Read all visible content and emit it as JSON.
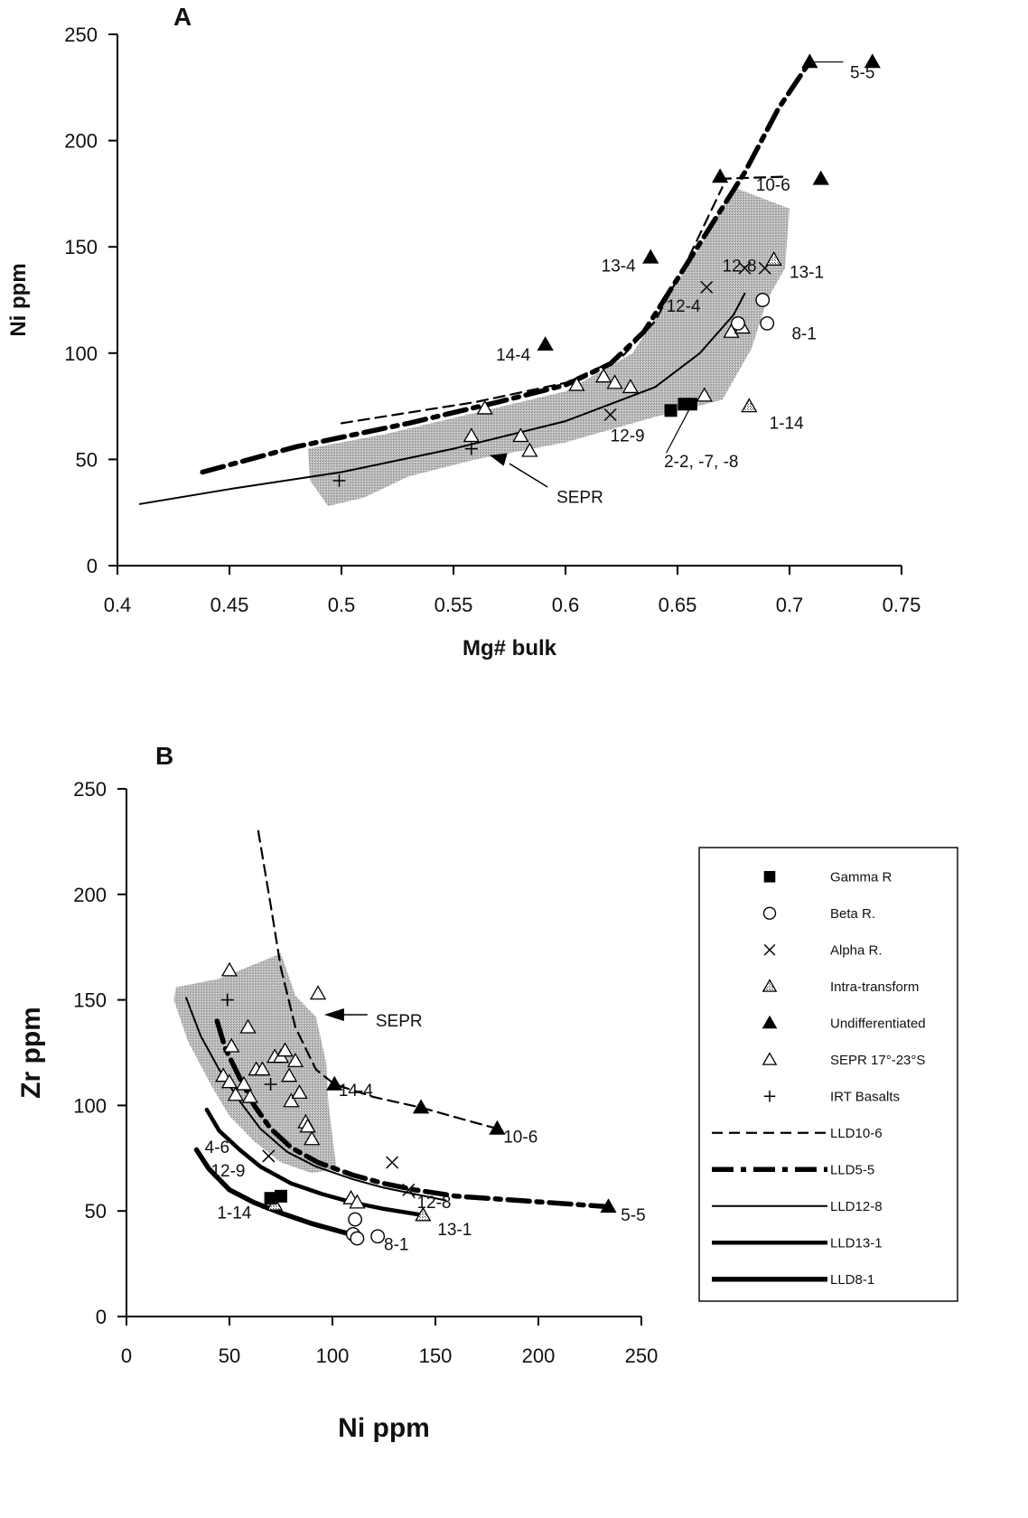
{
  "chart_data": [
    {
      "panel": "A",
      "type": "scatter",
      "xlabel": "Mg# bulk",
      "ylabel": "Ni ppm",
      "xlim": [
        0.4,
        0.75
      ],
      "ylim": [
        0,
        250
      ],
      "xticks": [
        "0.4",
        "0.45",
        "0.5",
        "0.55",
        "0.6",
        "0.65",
        "0.7",
        "0.75"
      ],
      "yticks": [
        "0",
        "50",
        "100",
        "150",
        "200",
        "250"
      ],
      "field_label": "SEPR",
      "field": [
        [
          0.485,
          55
        ],
        [
          0.52,
          62
        ],
        [
          0.56,
          72
        ],
        [
          0.6,
          82
        ],
        [
          0.63,
          100
        ],
        [
          0.645,
          125
        ],
        [
          0.66,
          150
        ],
        [
          0.675,
          178
        ],
        [
          0.7,
          168
        ],
        [
          0.698,
          140
        ],
        [
          0.69,
          125
        ],
        [
          0.683,
          102
        ],
        [
          0.67,
          78
        ],
        [
          0.64,
          70
        ],
        [
          0.6,
          58
        ],
        [
          0.56,
          50
        ],
        [
          0.53,
          42
        ],
        [
          0.51,
          32
        ],
        [
          0.494,
          28
        ],
        [
          0.486,
          40
        ]
      ],
      "points": {
        "gamma": [
          [
            0.647,
            73
          ],
          [
            0.653,
            76
          ],
          [
            0.656,
            76
          ]
        ],
        "beta": [
          [
            0.677,
            114
          ],
          [
            0.688,
            125
          ],
          [
            0.69,
            114
          ]
        ],
        "alpha": [
          [
            0.62,
            71
          ],
          [
            0.663,
            131
          ],
          [
            0.68,
            140
          ],
          [
            0.689,
            140
          ]
        ],
        "intra": [
          [
            0.682,
            75
          ],
          [
            0.693,
            144
          ]
        ],
        "undiff": [
          [
            0.591,
            104
          ],
          [
            0.638,
            145
          ],
          [
            0.669,
            183
          ],
          [
            0.709,
            237
          ],
          [
            0.714,
            182
          ],
          [
            0.737,
            237
          ]
        ],
        "sepr": [
          [
            0.558,
            61
          ],
          [
            0.564,
            74
          ],
          [
            0.58,
            61
          ],
          [
            0.584,
            54
          ],
          [
            0.605,
            85
          ],
          [
            0.617,
            89
          ],
          [
            0.622,
            86
          ],
          [
            0.629,
            84
          ],
          [
            0.662,
            80
          ],
          [
            0.674,
            110
          ],
          [
            0.679,
            112
          ]
        ],
        "irt": [
          [
            0.499,
            40
          ],
          [
            0.558,
            55
          ]
        ]
      },
      "series": [
        {
          "name": "LLD10-6",
          "style": "dash",
          "points": [
            [
              0.669,
              182
            ],
            [
              0.697,
              183
            ]
          ]
        },
        {
          "name": "LLD5-5",
          "style": "dashheavy",
          "points": [
            [
              0.438,
              44
            ],
            [
              0.48,
              56
            ],
            [
              0.53,
              67
            ],
            [
              0.57,
              77
            ],
            [
              0.6,
              85
            ],
            [
              0.62,
              95
            ],
            [
              0.635,
              110
            ],
            [
              0.65,
              135
            ],
            [
              0.668,
              165
            ],
            [
              0.68,
              185
            ],
            [
              0.695,
              215
            ],
            [
              0.709,
              237
            ]
          ]
        },
        {
          "name": "LLD12-8",
          "style": "thin",
          "points": [
            [
              0.41,
              29
            ],
            [
              0.45,
              36
            ],
            [
              0.5,
              44
            ],
            [
              0.55,
              55
            ],
            [
              0.6,
              68
            ],
            [
              0.64,
              84
            ],
            [
              0.66,
              100
            ],
            [
              0.675,
              118
            ],
            [
              0.68,
              128
            ]
          ]
        },
        {
          "name": "upper",
          "style": "dash",
          "points": [
            [
              0.5,
              67
            ],
            [
              0.56,
              77
            ],
            [
              0.6,
              86
            ],
            [
              0.625,
              98
            ],
            [
              0.64,
              115
            ],
            [
              0.655,
              145
            ],
            [
              0.67,
              178
            ]
          ]
        }
      ],
      "labels": [
        {
          "t": "5-5",
          "x": 0.727,
          "y": 232
        },
        {
          "t": "10-6",
          "x": 0.685,
          "y": 179
        },
        {
          "t": "13-4",
          "x": 0.616,
          "y": 141
        },
        {
          "t": "12-8",
          "x": 0.67,
          "y": 141
        },
        {
          "t": "13-1",
          "x": 0.7,
          "y": 138
        },
        {
          "t": "12-4",
          "x": 0.645,
          "y": 122
        },
        {
          "t": "8-1",
          "x": 0.701,
          "y": 109
        },
        {
          "t": "14-4",
          "x": 0.569,
          "y": 99
        },
        {
          "t": "1-14",
          "x": 0.691,
          "y": 67
        },
        {
          "t": "12-9",
          "x": 0.62,
          "y": 61
        },
        {
          "t": "2-2, -7, -8",
          "x": 0.644,
          "y": 49
        },
        {
          "t": "SEPR",
          "x": 0.596,
          "y": 32
        }
      ]
    },
    {
      "panel": "B",
      "type": "scatter",
      "xlabel": "Ni ppm",
      "ylabel": "Zr ppm",
      "xlim": [
        0,
        250
      ],
      "ylim": [
        0,
        250
      ],
      "xticks": [
        "0",
        "50",
        "100",
        "150",
        "200",
        "250"
      ],
      "yticks": [
        "0",
        "50",
        "100",
        "150",
        "200",
        "250"
      ],
      "field_label": "SEPR",
      "field": [
        [
          24,
          156
        ],
        [
          45,
          160
        ],
        [
          75,
          172
        ],
        [
          82,
          152
        ],
        [
          92,
          142
        ],
        [
          97,
          120
        ],
        [
          98,
          102
        ],
        [
          100,
          85
        ],
        [
          102,
          70
        ],
        [
          90,
          68
        ],
        [
          75,
          73
        ],
        [
          62,
          83
        ],
        [
          50,
          95
        ],
        [
          42,
          108
        ],
        [
          30,
          130
        ],
        [
          23,
          150
        ]
      ],
      "points": {
        "gamma": [
          [
            70,
            56
          ],
          [
            75,
            57
          ]
        ],
        "beta": [
          [
            111,
            46
          ],
          [
            110,
            39
          ],
          [
            112,
            37
          ],
          [
            122,
            38
          ]
        ],
        "alpha": [
          [
            69,
            76
          ],
          [
            129,
            73
          ],
          [
            137,
            60
          ]
        ],
        "intra": [
          [
            72,
            53
          ],
          [
            144,
            48
          ]
        ],
        "undiff": [
          [
            101,
            110
          ],
          [
            143,
            99
          ],
          [
            180,
            89
          ],
          [
            234,
            52
          ]
        ],
        "sepr": [
          [
            50,
            164
          ],
          [
            51,
            128
          ],
          [
            47,
            114
          ],
          [
            50,
            111
          ],
          [
            53,
            105
          ],
          [
            57,
            110
          ],
          [
            60,
            104
          ],
          [
            59,
            137
          ],
          [
            63,
            117
          ],
          [
            66,
            117
          ],
          [
            72,
            123
          ],
          [
            75,
            123
          ],
          [
            77,
            126
          ],
          [
            79,
            114
          ],
          [
            80,
            102
          ],
          [
            82,
            121
          ],
          [
            84,
            106
          ],
          [
            87,
            92
          ],
          [
            88,
            90
          ],
          [
            90,
            84
          ],
          [
            93,
            153
          ],
          [
            109,
            56
          ],
          [
            112,
            54
          ]
        ],
        "irt": [
          [
            49,
            150
          ],
          [
            70,
            110
          ]
        ]
      },
      "series": [
        {
          "name": "LLD10-6",
          "style": "dash",
          "points": [
            [
              64,
              230
            ],
            [
              70,
              195
            ],
            [
              75,
              165
            ],
            [
              82,
              137
            ],
            [
              92,
              117
            ],
            [
              101,
              110
            ],
            [
              120,
              104
            ],
            [
              143,
              99
            ],
            [
              165,
              93
            ],
            [
              180,
              89
            ]
          ]
        },
        {
          "name": "LLD5-5",
          "style": "dashheavy",
          "points": [
            [
              44,
              140
            ],
            [
              48,
              127
            ],
            [
              55,
              113
            ],
            [
              62,
              100
            ],
            [
              70,
              89
            ],
            [
              80,
              80
            ],
            [
              93,
              73
            ],
            [
              110,
              67
            ],
            [
              125,
              63
            ],
            [
              140,
              60
            ],
            [
              160,
              57
            ],
            [
              190,
              55
            ],
            [
              234,
              52
            ]
          ]
        },
        {
          "name": "LLD12-8",
          "style": "thin",
          "points": [
            [
              29,
              151
            ],
            [
              36,
              133
            ],
            [
              45,
              117
            ],
            [
              55,
              102
            ],
            [
              65,
              89
            ],
            [
              78,
              78
            ],
            [
              92,
              71
            ],
            [
              110,
              65
            ],
            [
              125,
              61
            ],
            [
              140,
              58
            ],
            [
              155,
              55
            ]
          ]
        },
        {
          "name": "LLD13-1",
          "style": "heavy",
          "points": [
            [
              39,
              98
            ],
            [
              45,
              88
            ],
            [
              55,
              79
            ],
            [
              65,
              71
            ],
            [
              80,
              63
            ],
            [
              95,
              58
            ],
            [
              110,
              54
            ],
            [
              125,
              51
            ],
            [
              144,
              48
            ]
          ]
        },
        {
          "name": "LLD8-1",
          "style": "heavy2",
          "points": [
            [
              34,
              79
            ],
            [
              40,
              70
            ],
            [
              50,
              60
            ],
            [
              62,
              54
            ],
            [
              75,
              49
            ],
            [
              90,
              44
            ],
            [
              105,
              40
            ],
            [
              113,
              38
            ]
          ]
        }
      ],
      "labels": [
        {
          "t": "SEPR",
          "x": 121,
          "y": 140
        },
        {
          "t": "14-4",
          "x": 103,
          "y": 107
        },
        {
          "t": "10-6",
          "x": 183,
          "y": 85
        },
        {
          "t": "4-6",
          "x": 38,
          "y": 80
        },
        {
          "t": "12-9",
          "x": 41,
          "y": 69
        },
        {
          "t": "12-8",
          "x": 141,
          "y": 54
        },
        {
          "t": "5-5",
          "x": 240,
          "y": 48
        },
        {
          "t": "1-14",
          "x": 44,
          "y": 49
        },
        {
          "t": "13-1",
          "x": 151,
          "y": 41
        },
        {
          "t": "8-1",
          "x": 125,
          "y": 34
        }
      ]
    }
  ],
  "legend": [
    {
      "label": "Gamma R",
      "symbol": "gamma"
    },
    {
      "label": "Beta R.",
      "symbol": "beta"
    },
    {
      "label": "Alpha R.",
      "symbol": "alpha"
    },
    {
      "label": "Intra-transform",
      "symbol": "intra"
    },
    {
      "label": "Undifferentiated",
      "symbol": "undiff"
    },
    {
      "label": "SEPR 17°-23°S",
      "symbol": "sepr"
    },
    {
      "label": "IRT Basalts",
      "symbol": "irt"
    },
    {
      "label": "LLD10-6",
      "symbol": "line-dash"
    },
    {
      "label": "LLD5-5",
      "symbol": "line-dashheavy"
    },
    {
      "label": "LLD12-8",
      "symbol": "line-thin"
    },
    {
      "label": "LLD13-1",
      "symbol": "line-heavy"
    },
    {
      "label": "LLD8-1",
      "symbol": "line-heavy2"
    }
  ]
}
